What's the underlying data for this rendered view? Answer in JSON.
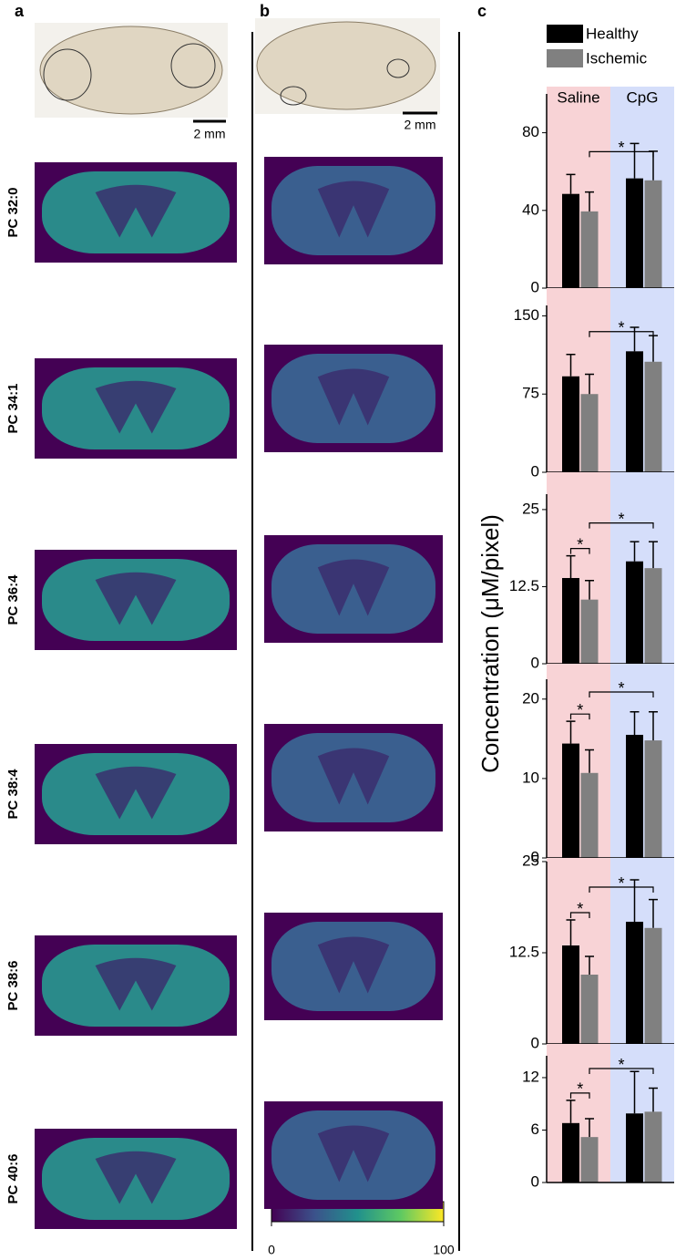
{
  "figure": {
    "panel_labels": [
      "a",
      "b",
      "c"
    ],
    "rows": [
      "PC 32:0",
      "PC 34:1",
      "PC 36:4",
      "PC 38:4",
      "PC 38:6",
      "PC 40:6"
    ],
    "scale_bar_labels": [
      "2 mm",
      "2 mm"
    ],
    "colorbar": {
      "lim": [
        0,
        100
      ],
      "ticks": [
        0,
        100
      ]
    },
    "ylabel": "Concentration (μM/pixel)"
  },
  "chart_data": [
    {
      "type": "bar",
      "categories": [
        "Saline",
        "CpG"
      ],
      "series": [
        {
          "name": "Healthy",
          "color": "#000000",
          "values": [
            48.5,
            56.5
          ],
          "errors": [
            10,
            18
          ]
        },
        {
          "name": "Ischemic",
          "color": "#808080",
          "values": [
            39.5,
            55.5
          ],
          "errors": [
            10,
            15
          ]
        }
      ],
      "ylim": [
        0,
        100
      ],
      "yticks": [
        0,
        40,
        80
      ],
      "background_colors": [
        "#f8d3d6",
        "#d5defa"
      ],
      "significance": [
        {
          "label": "*",
          "between": [
            [
              0,
              1
            ],
            [
              1,
              1
            ]
          ]
        }
      ]
    },
    {
      "type": "bar",
      "series": [
        {
          "color": "#000000",
          "values": [
            92,
            116
          ],
          "errors": [
            21,
            23
          ]
        },
        {
          "color": "#808080",
          "values": [
            75,
            106
          ],
          "errors": [
            19,
            25
          ]
        }
      ],
      "ylim": [
        0,
        160
      ],
      "yticks": [
        0,
        75,
        150
      ],
      "background_colors": [
        "#f8d3d6",
        "#d5defa"
      ],
      "significance": [
        {
          "label": "*",
          "between": [
            [
              0,
              1
            ],
            [
              1,
              1
            ]
          ]
        }
      ]
    },
    {
      "type": "bar",
      "series": [
        {
          "color": "#000000",
          "values": [
            13.9,
            16.6
          ],
          "errors": [
            3.6,
            3.2
          ]
        },
        {
          "color": "#808080",
          "values": [
            10.4,
            15.5
          ],
          "errors": [
            3.1,
            4.3
          ]
        }
      ],
      "ylim": [
        0,
        27.5
      ],
      "yticks": [
        0,
        12.5,
        25
      ],
      "background_colors": [
        "#f8d3d6",
        "#d5defa"
      ],
      "significance": [
        {
          "label": "*",
          "between": [
            [
              0,
              0
            ],
            [
              0,
              1
            ]
          ]
        },
        {
          "label": "*",
          "between": [
            [
              0,
              1
            ],
            [
              1,
              1
            ]
          ]
        }
      ]
    },
    {
      "type": "bar",
      "series": [
        {
          "color": "#000000",
          "values": [
            14.4,
            15.5
          ],
          "errors": [
            2.8,
            2.9
          ]
        },
        {
          "color": "#808080",
          "values": [
            10.7,
            14.8
          ],
          "errors": [
            2.9,
            3.6
          ]
        }
      ],
      "ylim": [
        0,
        22.5
      ],
      "yticks": [
        0,
        10,
        20
      ],
      "background_colors": [
        "#f8d3d6",
        "#d5defa"
      ],
      "significance": [
        {
          "label": "*",
          "between": [
            [
              0,
              0
            ],
            [
              0,
              1
            ]
          ]
        },
        {
          "label": "*",
          "between": [
            [
              0,
              1
            ],
            [
              1,
              1
            ]
          ]
        }
      ]
    },
    {
      "type": "bar",
      "series": [
        {
          "color": "#000000",
          "values": [
            13.5,
            16.75
          ],
          "errors": [
            3.5,
            5.75
          ]
        },
        {
          "color": "#808080",
          "values": [
            9.5,
            15.9
          ],
          "errors": [
            2.5,
            3.9
          ]
        }
      ],
      "ylim": [
        0,
        25
      ],
      "yticks": [
        0,
        12.5,
        25
      ],
      "background_colors": [
        "#f8d3d6",
        "#d5defa"
      ],
      "significance": [
        {
          "label": "*",
          "between": [
            [
              0,
              0
            ],
            [
              0,
              1
            ]
          ]
        },
        {
          "label": "*",
          "between": [
            [
              0,
              1
            ],
            [
              1,
              1
            ]
          ]
        }
      ]
    },
    {
      "type": "bar",
      "series": [
        {
          "color": "#000000",
          "values": [
            6.8,
            7.9
          ],
          "errors": [
            2.6,
            4.8
          ]
        },
        {
          "color": "#808080",
          "values": [
            5.2,
            8.1
          ],
          "errors": [
            2.1,
            2.7
          ]
        }
      ],
      "ylim": [
        0,
        14.5
      ],
      "yticks": [
        0,
        6,
        12
      ],
      "background_colors": [
        "#f8d3d6",
        "#d5defa"
      ],
      "significance": [
        {
          "label": "*",
          "between": [
            [
              0,
              0
            ],
            [
              0,
              1
            ]
          ]
        },
        {
          "label": "*",
          "between": [
            [
              0,
              1
            ],
            [
              1,
              1
            ]
          ]
        }
      ]
    }
  ]
}
